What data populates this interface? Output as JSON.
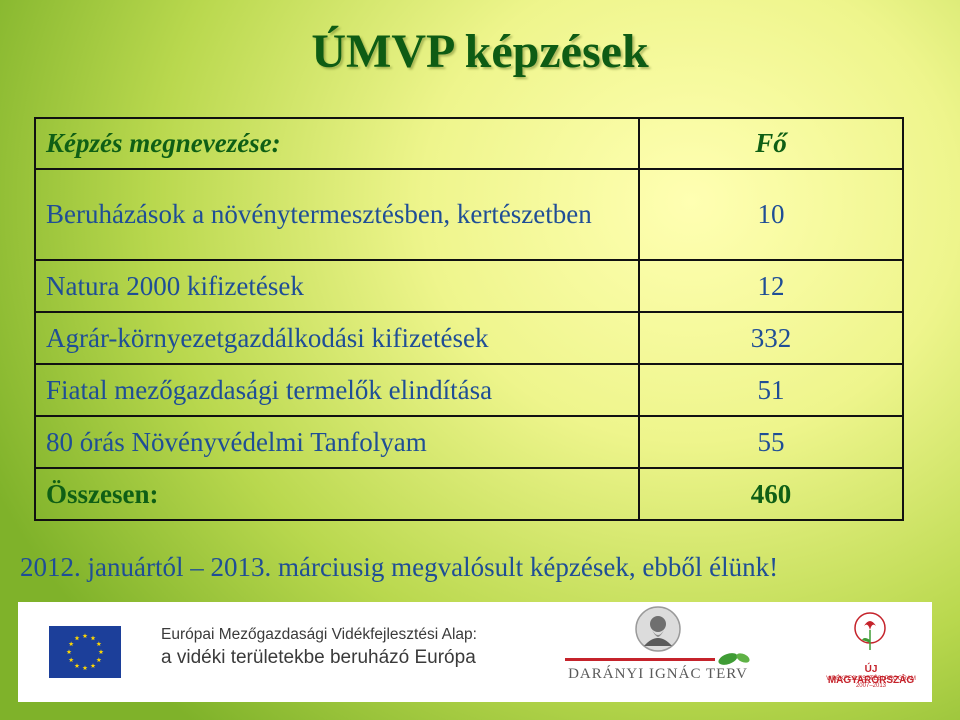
{
  "title": "ÚMVP képzések",
  "table": {
    "header": {
      "label": "Képzés megnevezése:",
      "value": "Fő"
    },
    "rows": [
      {
        "label": "Beruházások a növénytermesztésben, kertészetben",
        "value": "10"
      },
      {
        "label": "Natura 2000 kifizetések",
        "value": "12"
      },
      {
        "label": "Agrár-környezetgazdálkodási kifizetések",
        "value": "332"
      },
      {
        "label": "Fiatal mezőgazdasági termelők elindítása",
        "value": "51"
      },
      {
        "label": "80 órás Növényvédelmi Tanfolyam",
        "value": "55"
      }
    ],
    "total": {
      "label": "Összesen:",
      "value": "460"
    }
  },
  "caption": "2012. januártól – 2013. márciusig megvalósult képzések, ebből élünk!",
  "footer": {
    "fund_line1": "Európai Mezőgazdasági Vidékfejlesztési Alap:",
    "fund_line2": "a vidéki területekbe beruházó Európa",
    "daranyi_label": "DARÁNYI IGNÁC TERV",
    "ujm_label": "ÚJ MAGYARORSZÁG",
    "ujm_sub": "VIDÉKFEJLESZTÉSI PROGRAM 2007–2013"
  },
  "colors": {
    "title": "#0e5c14",
    "text": "#1f4e96",
    "accent_green": "#0f5f15",
    "eu_blue": "#1c3f9a",
    "eu_star": "#ffd700",
    "ujm_red": "#c5232b"
  },
  "icons": [
    "eu-flag-icon",
    "portrait-icon",
    "leaf-line-icon",
    "carnation-icon"
  ]
}
